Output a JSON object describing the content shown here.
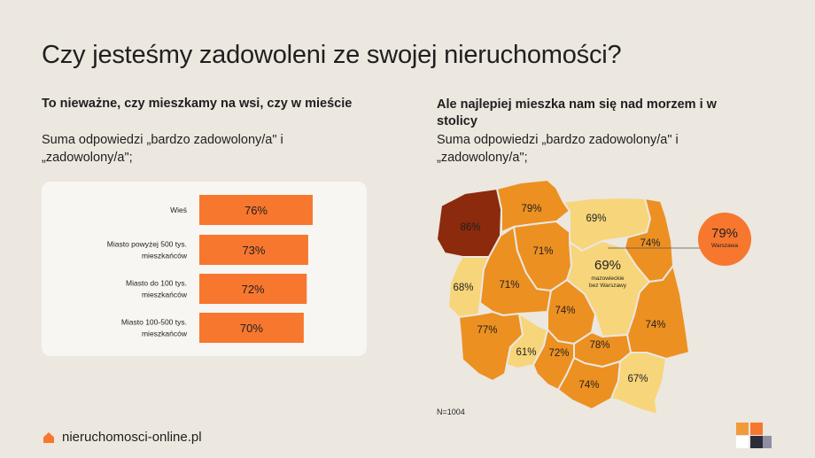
{
  "page": {
    "title": "Czy jesteśmy zadowoleni ze swojej nieruchomości?",
    "footer_site": "nieruchomosci-online.pl",
    "sample": "N=1004"
  },
  "colors": {
    "background": "#ece7df",
    "bar": "#f7772f",
    "highlight": "#f7772f",
    "region_dark": "#8c2a0e",
    "region_orange": "#ec9021",
    "region_yellow": "#f7d57a"
  },
  "chart_data": [
    {
      "type": "bar",
      "orientation": "horizontal",
      "title": "To nieważne, czy mieszkamy na wsi, czy w mieście",
      "subtitle": "Suma odpowiedzi „bardzo zadowolony/a\" i „zadowolony/a\";",
      "categories": [
        [
          "Wieś"
        ],
        [
          "Miasto powyżej 500 tys.",
          "mieszkańców"
        ],
        [
          "Miasto do 100 tys.",
          "mieszkańców"
        ],
        [
          "Miasto 100-500 tys.",
          "mieszkańców"
        ]
      ],
      "values": [
        76,
        73,
        72,
        70
      ],
      "labels": [
        "76%",
        "73%",
        "72%",
        "70%"
      ]
    },
    {
      "type": "map",
      "title": "Ale najlepiej mieszka nam się nad morzem i w stolicy",
      "subtitle": "Suma odpowiedzi „bardzo zadowolony/a\" i „zadowolony/a\";",
      "regions": [
        {
          "label": "86%",
          "value": 86,
          "tone": "dark"
        },
        {
          "label": "79%",
          "value": 79,
          "tone": "orange"
        },
        {
          "label": "69%",
          "value": 69,
          "tone": "yellow"
        },
        {
          "label": "74%",
          "value": 74,
          "tone": "orange"
        },
        {
          "label": "68%",
          "value": 68,
          "tone": "yellow"
        },
        {
          "label": "71%",
          "value": 71,
          "tone": "orange"
        },
        {
          "label": "71%",
          "value": 71,
          "tone": "orange"
        },
        {
          "label": "69%",
          "value": 69,
          "tone": "yellow",
          "note": [
            "mazowieckie",
            "bez Warszawy"
          ]
        },
        {
          "label": "74%",
          "value": 74,
          "tone": "orange"
        },
        {
          "label": "77%",
          "value": 77,
          "tone": "orange"
        },
        {
          "label": "74%",
          "value": 74,
          "tone": "orange"
        },
        {
          "label": "61%",
          "value": 61,
          "tone": "yellow"
        },
        {
          "label": "72%",
          "value": 72,
          "tone": "orange"
        },
        {
          "label": "78%",
          "value": 78,
          "tone": "orange"
        },
        {
          "label": "74%",
          "value": 74,
          "tone": "orange"
        },
        {
          "label": "67%",
          "value": 67,
          "tone": "yellow"
        }
      ],
      "callout": {
        "label": "79%",
        "value": 79,
        "name": "Warszawa"
      }
    }
  ]
}
